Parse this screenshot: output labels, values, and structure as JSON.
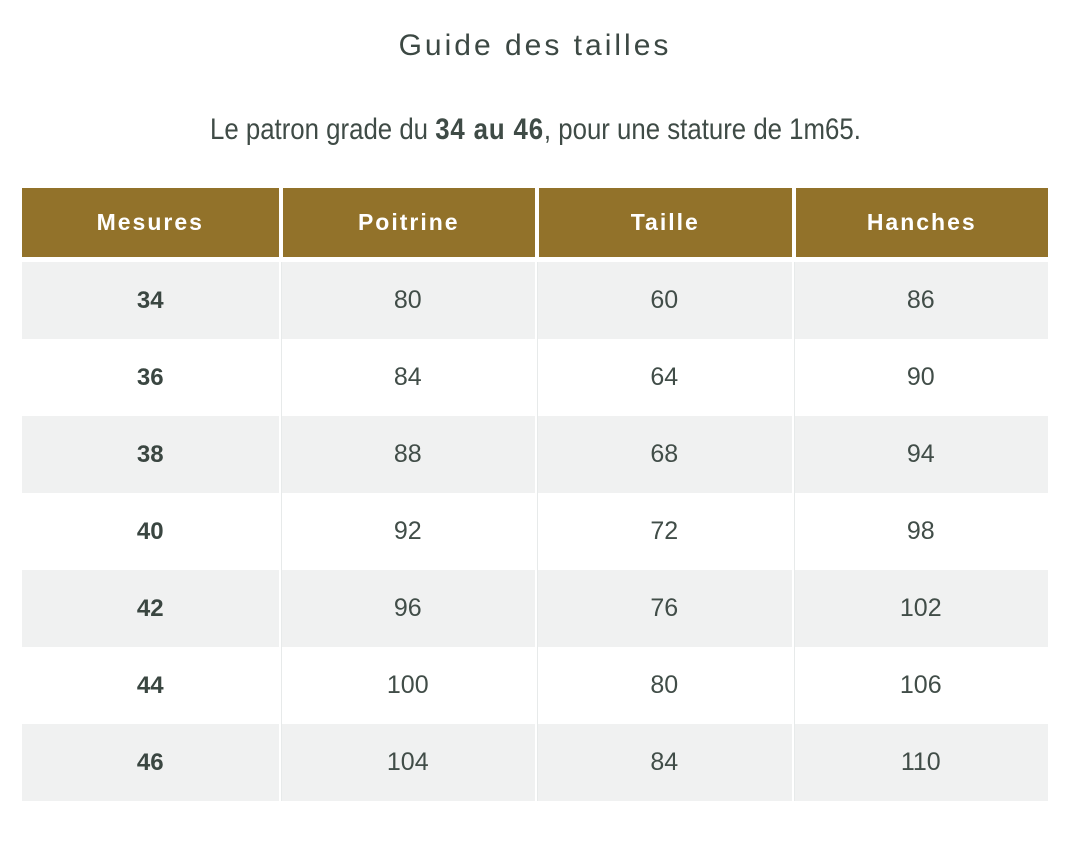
{
  "page": {
    "title": "Guide des tailles",
    "note_prefix": "Le patron grade du ",
    "note_bold": "34 au 46",
    "note_suffix": ", pour une stature de 1m65."
  },
  "table": {
    "headers": [
      "Mesures",
      "Poitrine",
      "Taille",
      "Hanches"
    ],
    "rows": [
      [
        "34",
        "80",
        "60",
        "86"
      ],
      [
        "36",
        "84",
        "64",
        "90"
      ],
      [
        "38",
        "88",
        "68",
        "94"
      ],
      [
        "40",
        "92",
        "72",
        "98"
      ],
      [
        "42",
        "96",
        "76",
        "102"
      ],
      [
        "44",
        "100",
        "80",
        "106"
      ],
      [
        "46",
        "104",
        "84",
        "110"
      ]
    ]
  },
  "colors": {
    "header_bg": "#92722a",
    "header_text": "#ffffff",
    "row_alt_bg": "#f0f1f1",
    "row_bg": "#ffffff",
    "body_text": "#3f4b46"
  }
}
